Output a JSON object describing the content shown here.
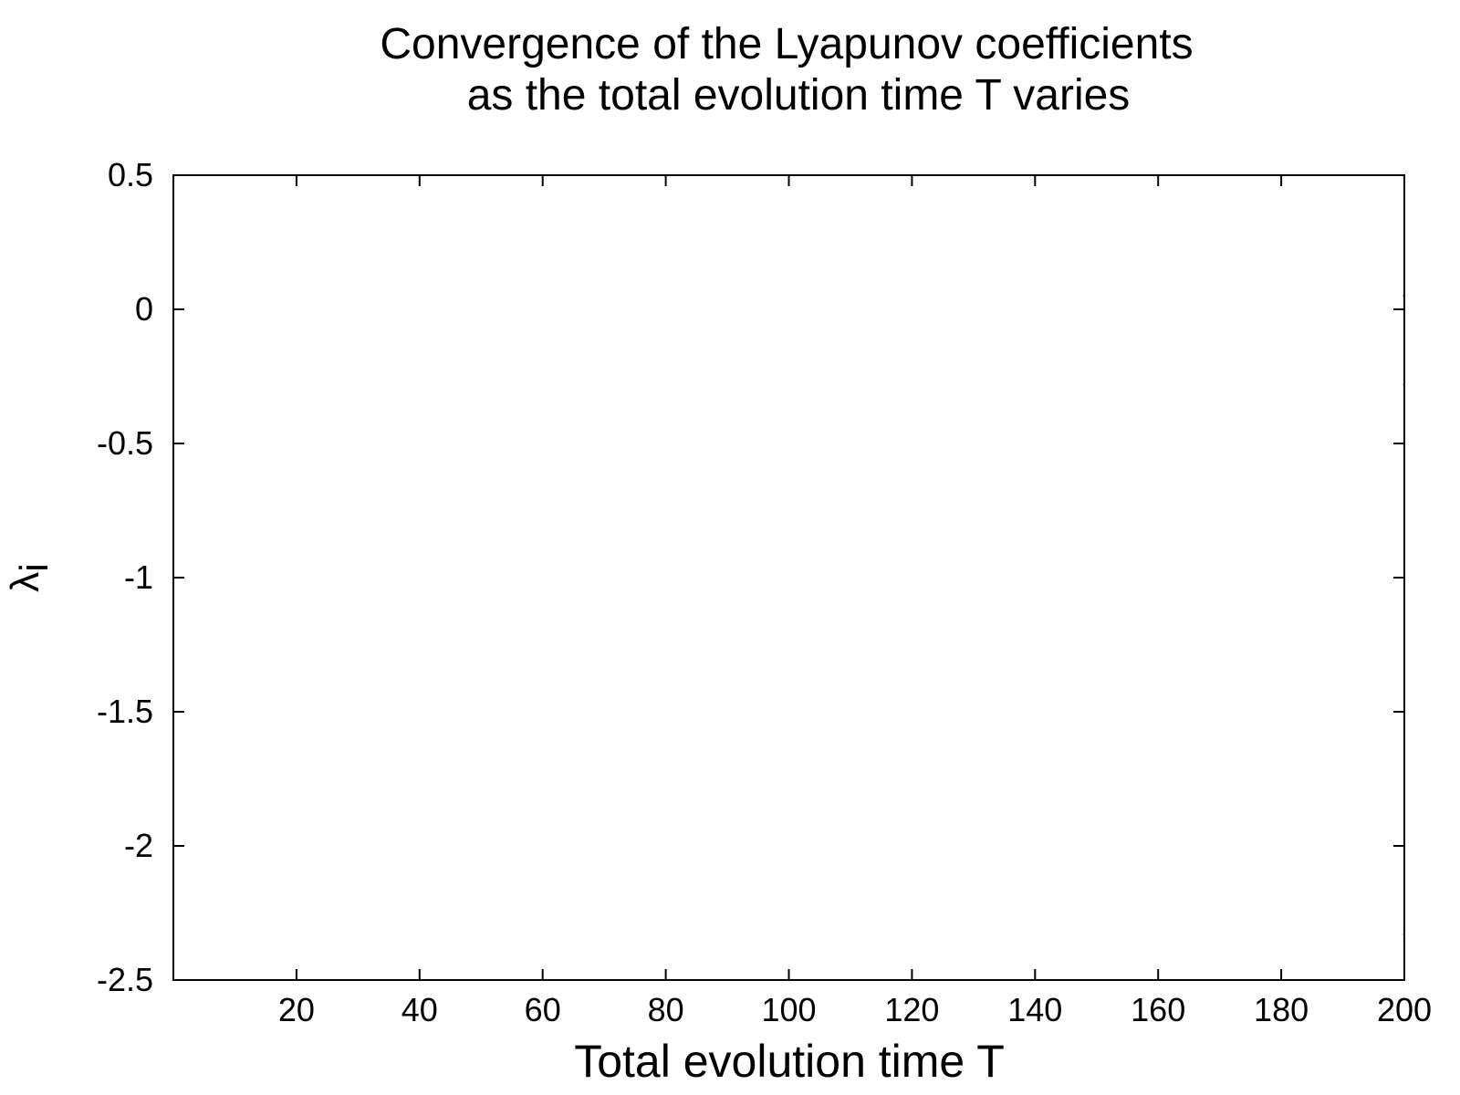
{
  "chart_data": {
    "type": "line",
    "title_line1": "Convergence of the Lyapunov coefficients",
    "title_line2": "as the total evolution time T varies",
    "xlabel": "Total evolution time T",
    "ylabel_base": "λ",
    "ylabel_sub": "i",
    "xlim": [
      0,
      200
    ],
    "ylim": [
      -2.5,
      0.5
    ],
    "xticks": [
      20,
      40,
      60,
      80,
      100,
      120,
      140,
      160,
      180,
      200
    ],
    "yticks": [
      0.5,
      0,
      -0.5,
      -1,
      -1.5,
      -2,
      -2.5
    ],
    "xtick_labels": [
      "20",
      "40",
      "60",
      "80",
      "100",
      "120",
      "140",
      "160",
      "180",
      "200"
    ],
    "ytick_labels": [
      "0.5",
      "0",
      "-0.5",
      "-1",
      "-1.5",
      "-2",
      "-2.5"
    ],
    "series": [
      {
        "x": [
          199.8,
          200
        ],
        "y": [
          0.05,
          0.05
        ]
      },
      {
        "x": [
          199.8,
          200
        ],
        "y": [
          -0.28,
          -0.28
        ]
      },
      {
        "x": [
          199.8,
          200
        ],
        "y": [
          -2.33,
          -2.33
        ]
      }
    ],
    "colors": {
      "axis": "#000000",
      "line": "#000000"
    }
  }
}
